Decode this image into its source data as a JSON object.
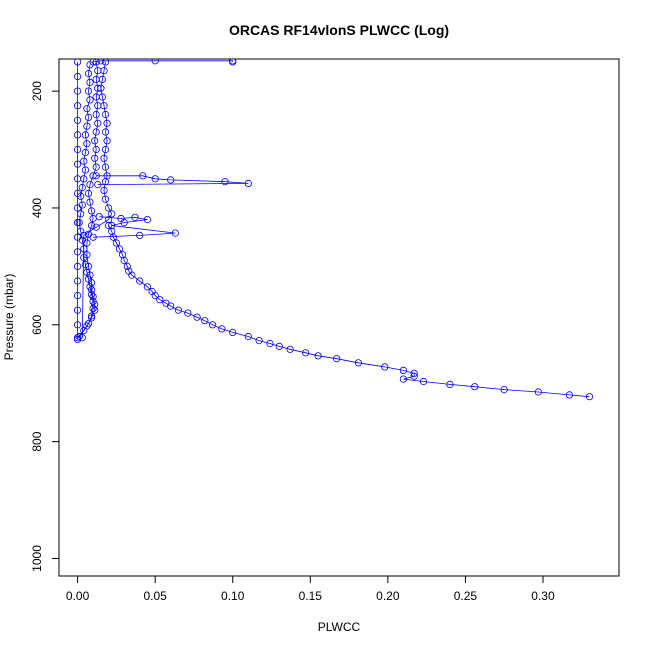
{
  "chart_data": {
    "type": "scatter",
    "title": "ORCAS RF14vlonS PLWCC (Log)",
    "xlabel": "PLWCC",
    "ylabel": "Pressure (mbar)",
    "xlim": [
      -0.012,
      0.349
    ],
    "ylim": [
      1030,
      145
    ],
    "y_reversed": true,
    "grid": false,
    "x_ticks": [
      0.0,
      0.05,
      0.1,
      0.15,
      0.2,
      0.25,
      0.3
    ],
    "x_tick_labels": [
      "0.00",
      "0.05",
      "0.10",
      "0.15",
      "0.20",
      "0.25",
      "0.30"
    ],
    "y_ticks": [
      200,
      400,
      600,
      800,
      1000
    ],
    "y_tick_labels": [
      "200",
      "400",
      "600",
      "800",
      "1000"
    ],
    "colors": {
      "series": "#0000ff",
      "axes": "#000000"
    },
    "series": [
      {
        "points": [
          [
            0.0,
            625
          ],
          [
            0.0,
            600
          ],
          [
            0.0,
            575
          ],
          [
            0.0,
            550
          ],
          [
            0.0,
            525
          ],
          [
            0.0,
            500
          ],
          [
            0.0,
            475
          ],
          [
            0.0,
            450
          ],
          [
            0.0,
            425
          ],
          [
            0.0,
            400
          ],
          [
            0.0,
            375
          ],
          [
            0.0,
            350
          ],
          [
            0.0,
            325
          ],
          [
            0.0,
            300
          ],
          [
            0.0,
            275
          ],
          [
            0.0,
            250
          ],
          [
            0.0,
            225
          ],
          [
            0.0,
            200
          ],
          [
            0.0,
            175
          ],
          [
            0.0,
            150
          ]
        ]
      },
      {
        "points": [
          [
            0.0,
            622
          ],
          [
            0.004,
            610
          ],
          [
            0.007,
            598
          ],
          [
            0.009,
            585
          ],
          [
            0.01,
            572
          ],
          [
            0.01,
            560
          ],
          [
            0.009,
            548
          ],
          [
            0.008,
            535
          ],
          [
            0.007,
            522
          ],
          [
            0.006,
            510
          ],
          [
            0.005,
            497
          ],
          [
            0.004,
            485
          ],
          [
            0.004,
            470
          ],
          [
            0.003,
            455
          ],
          [
            0.002,
            440
          ],
          [
            0.001,
            425
          ],
          [
            0.002,
            410
          ],
          [
            0.003,
            395
          ],
          [
            0.002,
            380
          ],
          [
            0.003,
            365
          ],
          [
            0.004,
            350
          ],
          [
            0.005,
            335
          ],
          [
            0.004,
            320
          ],
          [
            0.005,
            305
          ],
          [
            0.006,
            290
          ],
          [
            0.005,
            275
          ],
          [
            0.006,
            260
          ],
          [
            0.007,
            245
          ],
          [
            0.006,
            230
          ],
          [
            0.008,
            215
          ],
          [
            0.007,
            200
          ],
          [
            0.008,
            185
          ],
          [
            0.007,
            170
          ],
          [
            0.008,
            155
          ]
        ]
      },
      {
        "points": [
          [
            0.001,
            620
          ],
          [
            0.006,
            602
          ],
          [
            0.009,
            588
          ],
          [
            0.011,
            575
          ],
          [
            0.011,
            565
          ],
          [
            0.01,
            552
          ],
          [
            0.009,
            540
          ],
          [
            0.009,
            528
          ],
          [
            0.008,
            515
          ],
          [
            0.007,
            500
          ],
          [
            0.006,
            480
          ],
          [
            0.006,
            460
          ],
          [
            0.007,
            445
          ],
          [
            0.009,
            430
          ],
          [
            0.01,
            418
          ],
          [
            0.009,
            405
          ],
          [
            0.008,
            390
          ],
          [
            0.007,
            375
          ],
          [
            0.008,
            360
          ],
          [
            0.01,
            345
          ],
          [
            0.012,
            330
          ],
          [
            0.011,
            315
          ],
          [
            0.012,
            300
          ],
          [
            0.011,
            285
          ],
          [
            0.012,
            270
          ],
          [
            0.013,
            255
          ],
          [
            0.012,
            240
          ],
          [
            0.013,
            225
          ],
          [
            0.012,
            210
          ],
          [
            0.013,
            195
          ],
          [
            0.012,
            180
          ],
          [
            0.013,
            165
          ],
          [
            0.012,
            150
          ]
        ]
      },
      {
        "points": [
          [
            0.003,
            622
          ],
          [
            0.004,
            447
          ],
          [
            0.012,
            433
          ],
          [
            0.02,
            420
          ],
          [
            0.022,
            410
          ],
          [
            0.02,
            400
          ],
          [
            0.018,
            385
          ],
          [
            0.017,
            370
          ],
          [
            0.018,
            355
          ],
          [
            0.019,
            345
          ],
          [
            0.018,
            330
          ],
          [
            0.017,
            315
          ],
          [
            0.018,
            300
          ],
          [
            0.019,
            285
          ],
          [
            0.018,
            270
          ],
          [
            0.019,
            255
          ],
          [
            0.018,
            240
          ],
          [
            0.017,
            225
          ],
          [
            0.016,
            210
          ],
          [
            0.015,
            195
          ],
          [
            0.016,
            180
          ],
          [
            0.017,
            165
          ],
          [
            0.018,
            150
          ]
        ]
      },
      {
        "points": [
          [
            0.012,
            345
          ],
          [
            0.042,
            345
          ],
          [
            0.05,
            350
          ],
          [
            0.06,
            352
          ],
          [
            0.095,
            355
          ],
          [
            0.11,
            358
          ],
          [
            0.013,
            360
          ]
        ]
      },
      {
        "points": [
          [
            0.014,
            415
          ],
          [
            0.028,
            418
          ],
          [
            0.037,
            416
          ],
          [
            0.045,
            420
          ],
          [
            0.03,
            425
          ],
          [
            0.022,
            430
          ],
          [
            0.063,
            443
          ],
          [
            0.04,
            447
          ],
          [
            0.01,
            450
          ]
        ]
      },
      {
        "points": [
          [
            0.02,
            430
          ],
          [
            0.022,
            440
          ],
          [
            0.023,
            450
          ],
          [
            0.025,
            460
          ],
          [
            0.027,
            470
          ],
          [
            0.029,
            480
          ],
          [
            0.03,
            490
          ],
          [
            0.032,
            500
          ],
          [
            0.033,
            508
          ],
          [
            0.035,
            515
          ],
          [
            0.04,
            525
          ],
          [
            0.045,
            535
          ],
          [
            0.048,
            543
          ],
          [
            0.05,
            550
          ],
          [
            0.053,
            557
          ],
          [
            0.057,
            563
          ],
          [
            0.06,
            568
          ],
          [
            0.065,
            575
          ],
          [
            0.071,
            580
          ],
          [
            0.077,
            587
          ],
          [
            0.082,
            593
          ],
          [
            0.087,
            600
          ],
          [
            0.093,
            607
          ],
          [
            0.1,
            613
          ],
          [
            0.11,
            620
          ],
          [
            0.117,
            627
          ],
          [
            0.124,
            632
          ],
          [
            0.13,
            637
          ],
          [
            0.137,
            642
          ],
          [
            0.147,
            648
          ],
          [
            0.155,
            653
          ],
          [
            0.167,
            658
          ],
          [
            0.181,
            665
          ],
          [
            0.198,
            672
          ],
          [
            0.21,
            678
          ],
          [
            0.217,
            683
          ],
          [
            0.217,
            688
          ],
          [
            0.21,
            693
          ],
          [
            0.223,
            697
          ],
          [
            0.24,
            702
          ],
          [
            0.256,
            706
          ],
          [
            0.275,
            711
          ],
          [
            0.297,
            715
          ],
          [
            0.317,
            720
          ],
          [
            0.33,
            723
          ]
        ]
      },
      {
        "points": [
          [
            0.01,
            150
          ],
          [
            0.015,
            148
          ],
          [
            0.05,
            148
          ],
          [
            0.1,
            148
          ],
          [
            0.1,
            150
          ]
        ]
      }
    ]
  }
}
